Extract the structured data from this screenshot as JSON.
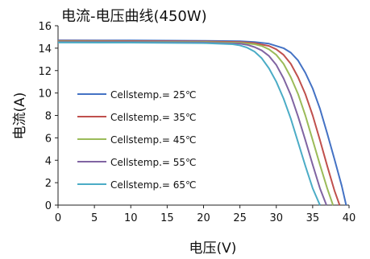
{
  "chart_data": {
    "type": "line",
    "title": "电流-电压曲线(450W)",
    "xlabel": "电压(V)",
    "ylabel": "电流(A)",
    "xlim": [
      0,
      40
    ],
    "ylim": [
      0,
      16
    ],
    "xticks": [
      0,
      5,
      10,
      15,
      20,
      25,
      30,
      35,
      40
    ],
    "yticks": [
      0,
      2,
      4,
      6,
      8,
      10,
      12,
      14,
      16
    ],
    "grid": false,
    "legend_position": "left",
    "series": [
      {
        "name": "Cellstemp.= 25℃",
        "color": "#4472C4",
        "isc": 14.7,
        "voc": 39.6,
        "points": [
          [
            0,
            14.7
          ],
          [
            10,
            14.69
          ],
          [
            20,
            14.66
          ],
          [
            25,
            14.62
          ],
          [
            27,
            14.55
          ],
          [
            29,
            14.4
          ],
          [
            31,
            14.0
          ],
          [
            32,
            13.6
          ],
          [
            33,
            12.9
          ],
          [
            34,
            11.8
          ],
          [
            35,
            10.4
          ],
          [
            36,
            8.6
          ],
          [
            37,
            6.4
          ],
          [
            38,
            4.1
          ],
          [
            39,
            1.7
          ],
          [
            39.6,
            0
          ]
        ]
      },
      {
        "name": "Cellstemp.= 35℃",
        "color": "#C0504D",
        "isc": 14.65,
        "voc": 38.7,
        "points": [
          [
            0,
            14.65
          ],
          [
            10,
            14.64
          ],
          [
            20,
            14.6
          ],
          [
            25,
            14.55
          ],
          [
            27,
            14.45
          ],
          [
            29,
            14.2
          ],
          [
            30,
            13.9
          ],
          [
            31,
            13.4
          ],
          [
            32,
            12.6
          ],
          [
            33,
            11.4
          ],
          [
            34,
            9.9
          ],
          [
            35,
            8.0
          ],
          [
            36,
            5.8
          ],
          [
            37,
            3.5
          ],
          [
            38,
            1.3
          ],
          [
            38.7,
            0
          ]
        ]
      },
      {
        "name": "Cellstemp.= 45℃",
        "color": "#9BBB59",
        "isc": 14.6,
        "voc": 37.8,
        "points": [
          [
            0,
            14.6
          ],
          [
            10,
            14.59
          ],
          [
            20,
            14.55
          ],
          [
            25,
            14.48
          ],
          [
            27,
            14.35
          ],
          [
            28,
            14.2
          ],
          [
            29,
            13.9
          ],
          [
            30,
            13.4
          ],
          [
            31,
            12.6
          ],
          [
            32,
            11.4
          ],
          [
            33,
            9.9
          ],
          [
            34,
            8.0
          ],
          [
            35,
            5.8
          ],
          [
            36,
            3.6
          ],
          [
            37,
            1.5
          ],
          [
            37.8,
            0
          ]
        ]
      },
      {
        "name": "Cellstemp.= 55℃",
        "color": "#8064A2",
        "isc": 14.55,
        "voc": 36.9,
        "points": [
          [
            0,
            14.55
          ],
          [
            10,
            14.54
          ],
          [
            20,
            14.5
          ],
          [
            25,
            14.4
          ],
          [
            26,
            14.3
          ],
          [
            27,
            14.1
          ],
          [
            28,
            13.8
          ],
          [
            29,
            13.3
          ],
          [
            30,
            12.5
          ],
          [
            31,
            11.3
          ],
          [
            32,
            9.8
          ],
          [
            33,
            7.9
          ],
          [
            34,
            5.8
          ],
          [
            35,
            3.6
          ],
          [
            36,
            1.5
          ],
          [
            36.9,
            0
          ]
        ]
      },
      {
        "name": "Cellstemp.= 65℃",
        "color": "#4BACC6",
        "isc": 14.5,
        "voc": 36.0,
        "points": [
          [
            0,
            14.5
          ],
          [
            10,
            14.49
          ],
          [
            20,
            14.45
          ],
          [
            24,
            14.35
          ],
          [
            25,
            14.25
          ],
          [
            26,
            14.05
          ],
          [
            27,
            13.7
          ],
          [
            28,
            13.1
          ],
          [
            29,
            12.2
          ],
          [
            30,
            11.0
          ],
          [
            31,
            9.5
          ],
          [
            32,
            7.7
          ],
          [
            33,
            5.6
          ],
          [
            34,
            3.5
          ],
          [
            35,
            1.5
          ],
          [
            36.0,
            0
          ]
        ]
      }
    ]
  }
}
